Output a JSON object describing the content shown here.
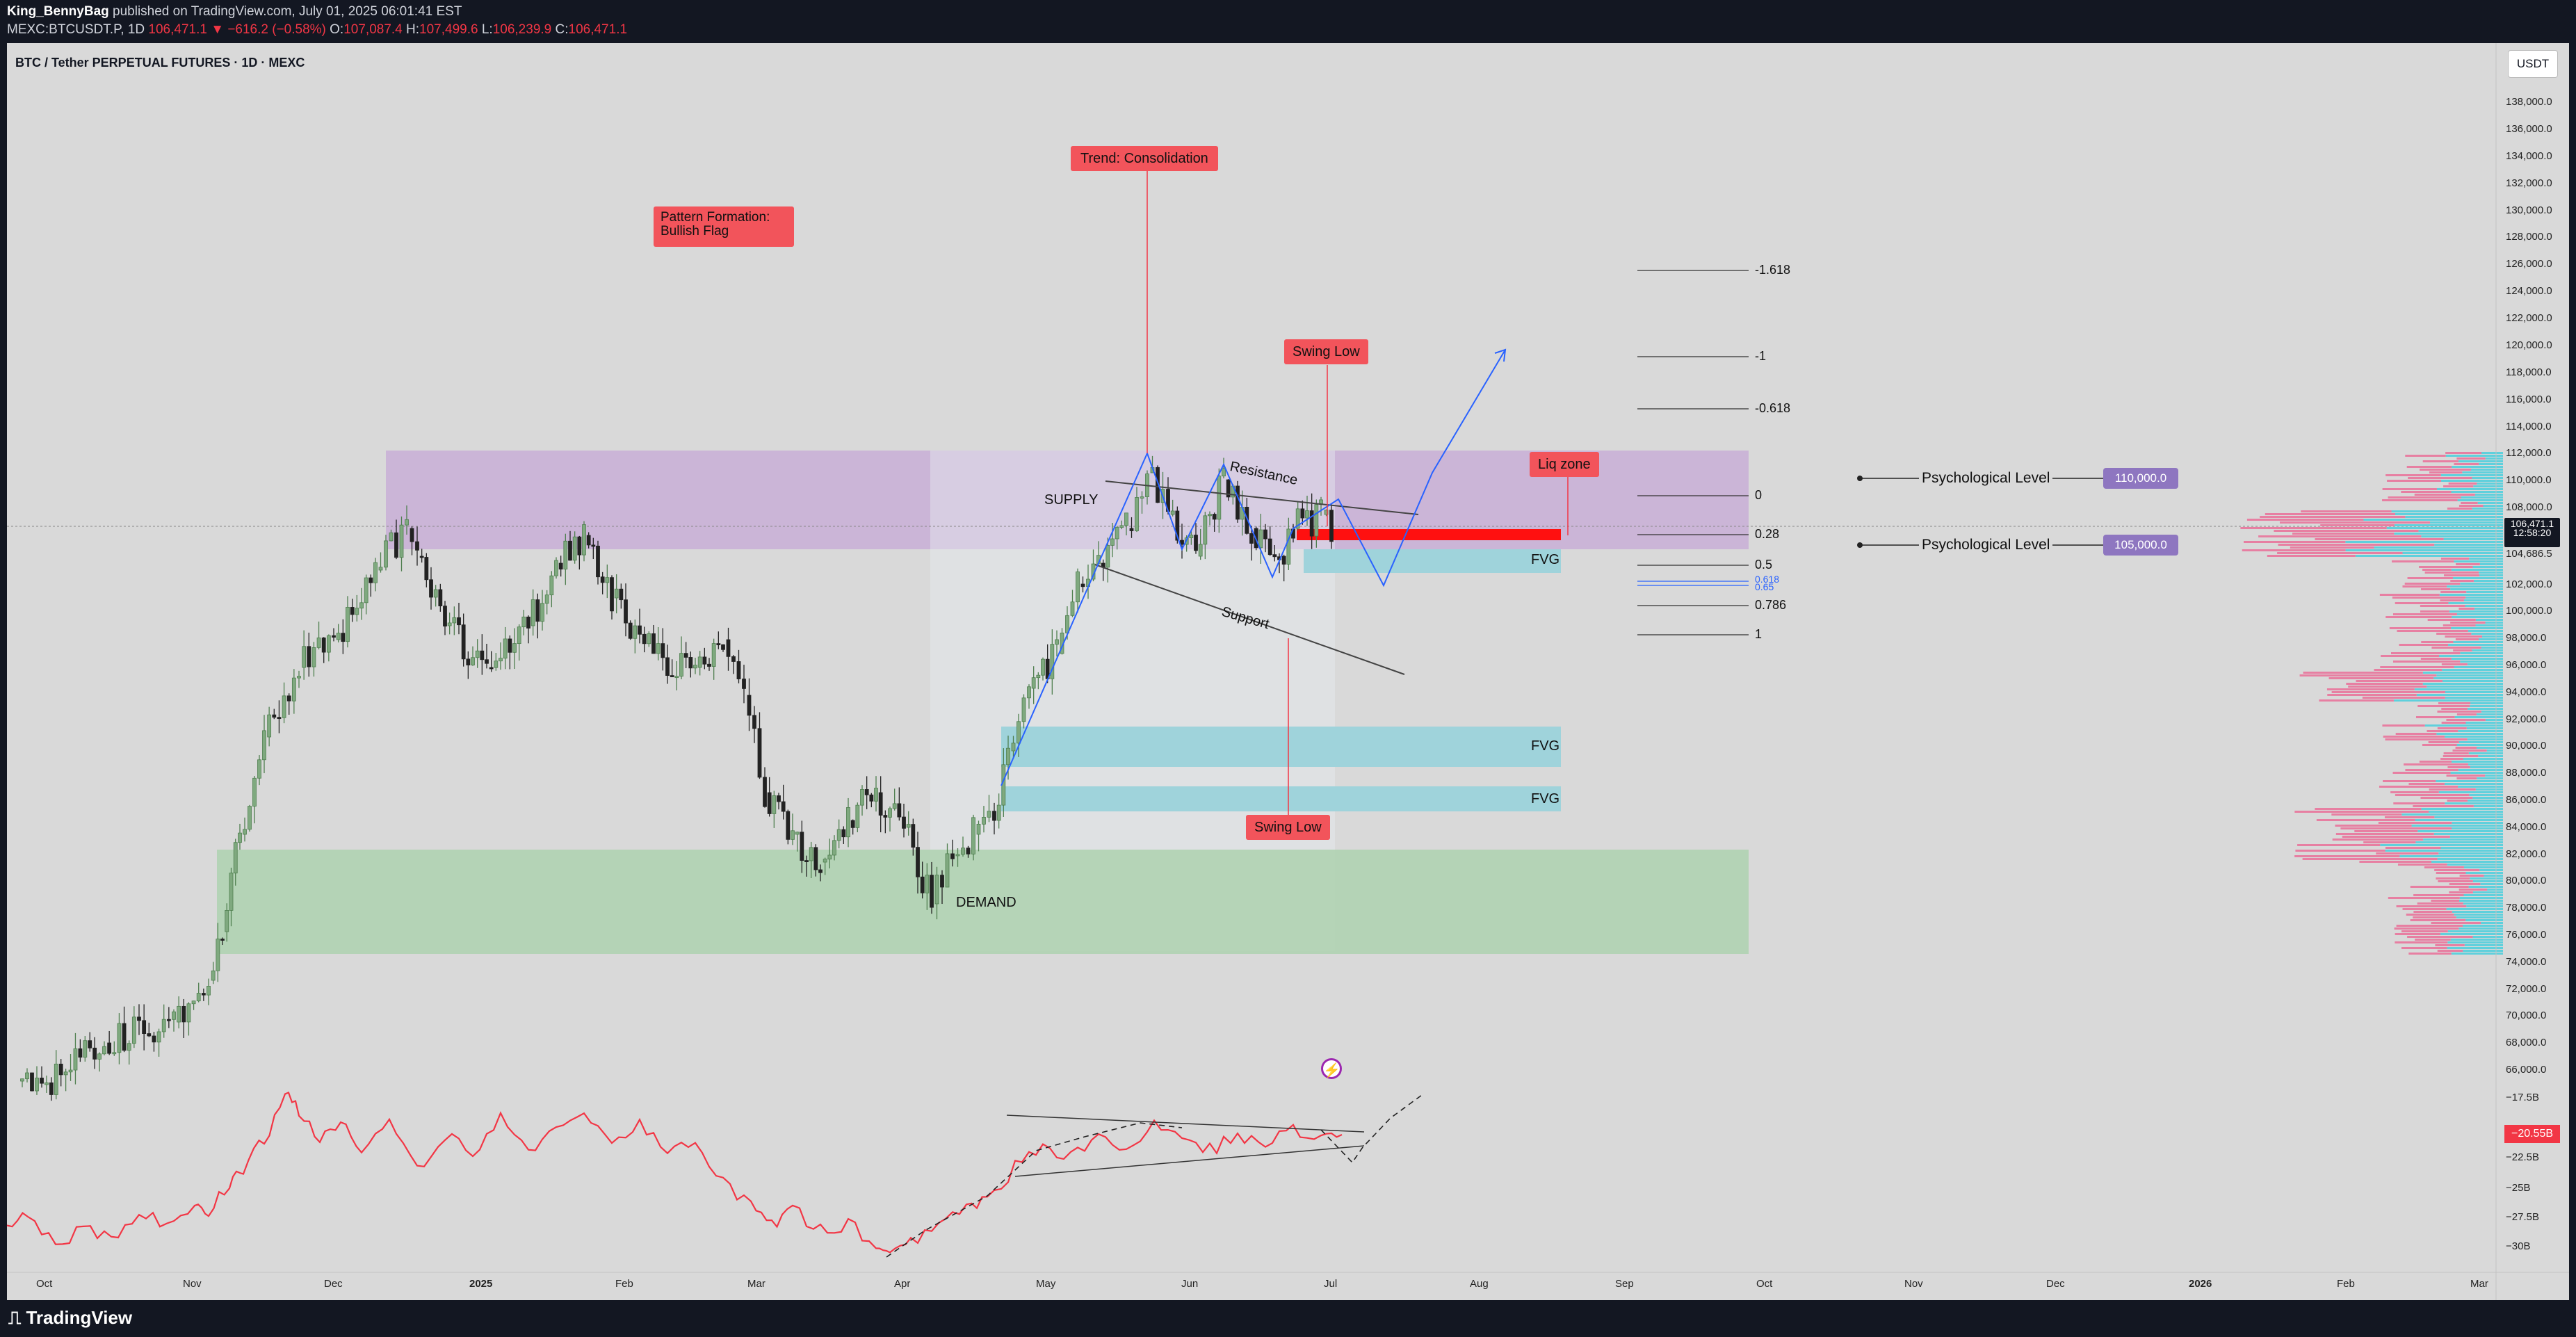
{
  "topbar": {
    "publisher_user": "King_BennyBag",
    "publisher_rest": " published on TradingView.com, July 01, 2025 06:01:41 EST",
    "symbol_line": "MEXC:BTCUSDT.P, 1D",
    "last": "106,471.1",
    "change": "▼ −616.2 (−0.58%)",
    "o_label": "O:",
    "o": "107,087.4",
    "h_label": "H:",
    "h": "107,499.6",
    "l_label": "L:",
    "l": "106,239.9",
    "c_label": "C:",
    "c": "106,471.1"
  },
  "chart_title": "BTC / Tether PERPETUAL FUTURES · 1D · MEXC",
  "currency": "USDT",
  "price_badge": {
    "price": "106,471.1",
    "time": "12:58:20"
  },
  "price_badge_secondary": "104,686.5",
  "indicator_badge": "−20.55B",
  "price_axis": [
    "138,000.0",
    "136,000.0",
    "134,000.0",
    "132,000.0",
    "130,000.0",
    "128,000.0",
    "126,000.0",
    "124,000.0",
    "122,000.0",
    "120,000.0",
    "118,000.0",
    "116,000.0",
    "114,000.0",
    "112,000.0",
    "110,000.0",
    "108,000.0",
    "104,686.5",
    "102,000.0",
    "100,000.0",
    "98,000.0",
    "96,000.0",
    "94,000.0",
    "92,000.0",
    "90,000.0",
    "88,000.0",
    "86,000.0",
    "84,000.0",
    "82,000.0",
    "80,000.0",
    "78,000.0",
    "76,000.0",
    "74,000.0",
    "72,000.0",
    "70,000.0",
    "68,000.0",
    "66,000.0"
  ],
  "indicator_axis": [
    "−17.5B",
    "−22.5B",
    "−25B",
    "−27.5B",
    "−30B"
  ],
  "time_axis": [
    "Oct",
    "Nov",
    "Dec",
    "2025",
    "Feb",
    "Mar",
    "Apr",
    "May",
    "Jun",
    "Jul",
    "Aug",
    "Sep",
    "Oct",
    "Nov",
    "Dec",
    "2026",
    "Feb",
    "Mar"
  ],
  "annotations": {
    "trend": "Trend: Consolidation",
    "pattern_line1": "Pattern Formation:",
    "pattern_line2": "Bullish Flag",
    "swing_low_top": "Swing Low",
    "swing_low_bottom": "Swing Low",
    "liq_zone": "Liq zone",
    "supply": "SUPPLY",
    "demand": "DEMAND",
    "resistance": "Resistance",
    "support": "Support",
    "fvg1": "FVG",
    "fvg2": "FVG",
    "fvg3": "FVG",
    "psych1": "Psychological Level",
    "psych1_value": "110,000.0",
    "psych2": "Psychological Level",
    "psych2_value": "105,000.0"
  },
  "fib_levels": [
    "-1.618",
    "-1",
    "-0.618",
    "0",
    "0.28",
    "0.5",
    "0.618",
    "0.65",
    "0.786",
    "1"
  ],
  "brand": "TradingView",
  "colors": {
    "bg": "#d9d9d9",
    "supply": "#c9b0d6",
    "demand": "#b2d3b4",
    "fvg": "#9fd3db",
    "label": "#f2545b",
    "line_blue": "#2962ff",
    "bull": "#4f7f4f",
    "bear": "#222222",
    "psych_badge": "#8e76c0",
    "profile_pink": "#e77fa2",
    "profile_teal": "#5fd0dc"
  }
}
